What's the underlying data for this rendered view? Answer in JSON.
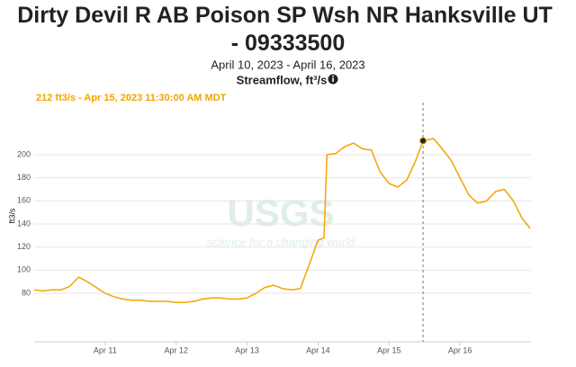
{
  "chart_data": {
    "type": "line",
    "title": "Dirty Devil R AB Poison SP Wsh NR Hanksville UT - 09333500",
    "subtitle": "April 10, 2023 - April 16, 2023",
    "axis_title": "Streamflow, ft³/s",
    "y_label": "ft3/s",
    "watermark": [
      "USGS",
      "science for a changing world"
    ],
    "color": "#f5a300",
    "grid": true,
    "xlim": [
      "2023-04-10T00:00",
      "2023-04-17T00:00"
    ],
    "xticks": [
      {
        "value": "2023-04-11T00:00",
        "label": "Apr 11"
      },
      {
        "value": "2023-04-12T00:00",
        "label": "Apr 12"
      },
      {
        "value": "2023-04-13T00:00",
        "label": "Apr 13"
      },
      {
        "value": "2023-04-14T00:00",
        "label": "Apr 14"
      },
      {
        "value": "2023-04-15T00:00",
        "label": "Apr 15"
      },
      {
        "value": "2023-04-16T00:00",
        "label": "Apr 16"
      }
    ],
    "ylim": [
      38,
      242
    ],
    "yticks": [
      80,
      100,
      120,
      140,
      160,
      180,
      200
    ],
    "x": [
      "2023-04-10T00:00",
      "2023-04-10T03:00",
      "2023-04-10T06:00",
      "2023-04-10T09:00",
      "2023-04-10T12:00",
      "2023-04-10T15:00",
      "2023-04-10T18:00",
      "2023-04-10T21:00",
      "2023-04-11T00:00",
      "2023-04-11T03:00",
      "2023-04-11T06:00",
      "2023-04-11T09:00",
      "2023-04-11T12:00",
      "2023-04-11T15:00",
      "2023-04-11T18:00",
      "2023-04-11T21:00",
      "2023-04-12T00:00",
      "2023-04-12T03:00",
      "2023-04-12T06:00",
      "2023-04-12T09:00",
      "2023-04-12T12:00",
      "2023-04-12T15:00",
      "2023-04-12T18:00",
      "2023-04-12T21:00",
      "2023-04-13T00:00",
      "2023-04-13T03:00",
      "2023-04-13T06:00",
      "2023-04-13T09:00",
      "2023-04-13T12:00",
      "2023-04-13T15:00",
      "2023-04-13T18:00",
      "2023-04-13T21:00",
      "2023-04-14T00:00",
      "2023-04-14T02:00",
      "2023-04-14T03:00",
      "2023-04-14T06:00",
      "2023-04-14T09:00",
      "2023-04-14T12:00",
      "2023-04-14T15:00",
      "2023-04-14T18:00",
      "2023-04-14T21:00",
      "2023-04-15T00:00",
      "2023-04-15T03:00",
      "2023-04-15T06:00",
      "2023-04-15T09:00",
      "2023-04-15T11:30",
      "2023-04-15T15:00",
      "2023-04-15T18:00",
      "2023-04-15T21:00",
      "2023-04-16T00:00",
      "2023-04-16T03:00",
      "2023-04-16T06:00",
      "2023-04-16T09:00",
      "2023-04-16T12:00",
      "2023-04-16T15:00",
      "2023-04-16T18:00",
      "2023-04-16T21:00",
      "2023-04-16T23:45"
    ],
    "values": [
      83,
      82,
      83,
      83,
      86,
      94,
      90,
      85,
      80,
      77,
      75,
      74,
      74,
      73,
      73,
      73,
      72,
      72,
      73,
      75,
      76,
      76,
      75,
      75,
      76,
      80,
      85,
      87,
      84,
      83,
      84,
      105,
      126,
      128,
      200,
      201,
      207,
      210,
      205,
      204,
      185,
      175,
      172,
      178,
      195,
      212,
      214,
      205,
      195,
      180,
      165,
      158,
      160,
      168,
      170,
      160,
      145,
      136
    ],
    "highlight": {
      "x": "2023-04-15T11:30",
      "value": 212,
      "label": "212 ft3/s - Apr 15, 2023 11:30:00 AM MDT"
    }
  }
}
